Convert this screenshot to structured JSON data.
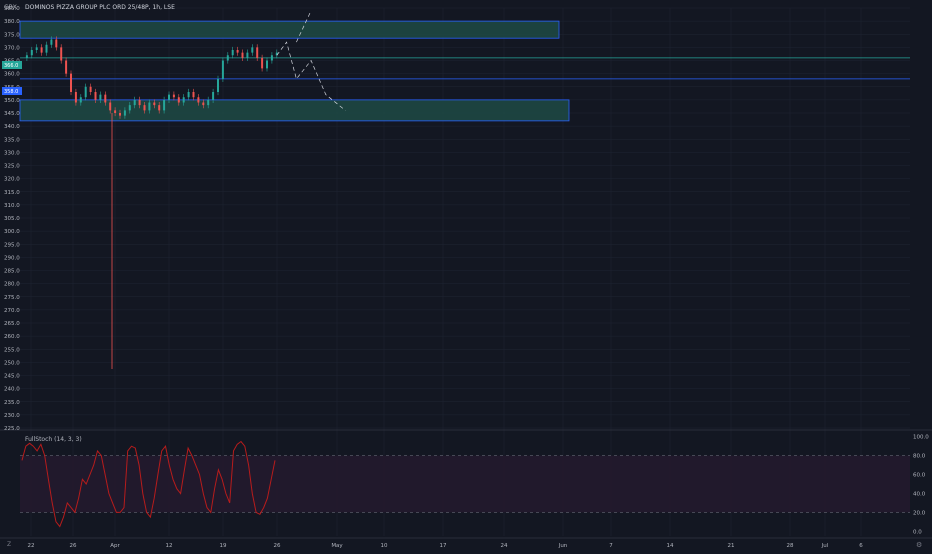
{
  "header": {
    "currency": "GBX",
    "symbol_title": "DOMINOS PIZZA GROUP PLC ORD 25/48P, 1h, LSE"
  },
  "price_tags": {
    "upper": "366.0",
    "lower": "358.0"
  },
  "indicator": {
    "label": "FullStoch (14, 3, 3)"
  },
  "corner": {
    "left_glyph": "Z",
    "right_glyph": "⚙"
  },
  "colors": {
    "background": "#131722",
    "grid": "#1f2433",
    "zone_fill": "#1f4a44",
    "zone_border": "#2962ff",
    "hline": "#2962ff",
    "bull": "#26a69a",
    "bear": "#ef5350",
    "axis_text": "#b2b5be",
    "stoch_line": "#b71c1c",
    "stoch_band": "#241a2e"
  },
  "chart_data": [
    {
      "type": "candlestick",
      "title": "DOMINOS PIZZA GROUP PLC ORD 25/48P, 1h, LSE",
      "y_unit": "GBX",
      "ylim": [
        225,
        385
      ],
      "y_ticks": [
        385.0,
        380.0,
        375.0,
        370.0,
        365.0,
        360.0,
        355.0,
        350.0,
        345.0,
        340.0,
        335.0,
        330.0,
        325.0,
        320.0,
        315.0,
        310.0,
        305.0,
        300.0,
        295.0,
        290.0,
        285.0,
        280.0,
        275.0,
        270.0,
        265.0,
        260.0,
        255.0,
        250.0,
        245.0,
        240.0,
        235.0,
        230.0,
        225.0
      ],
      "x_ticks": [
        "22",
        "26",
        "Apr",
        "12",
        "19",
        "26",
        "May",
        "10",
        "17",
        "24",
        "Jun",
        "7",
        "14",
        "21",
        "28",
        "Jul",
        "6"
      ],
      "zones": [
        {
          "from_date": "Mar 22",
          "to_date": "Jun 1",
          "low": 373.5,
          "high": 380.0
        },
        {
          "from_date": "Mar 22",
          "to_date": "Jun 2",
          "low": 342.0,
          "high": 350.0
        }
      ],
      "horizontal_lines": [
        366.0,
        358.0
      ],
      "price_path": [
        [
          0,
          366
        ],
        [
          2,
          367
        ],
        [
          4,
          369
        ],
        [
          6,
          370
        ],
        [
          8,
          368
        ],
        [
          10,
          371
        ],
        [
          12,
          373
        ],
        [
          14,
          370
        ],
        [
          16,
          365
        ],
        [
          18,
          360
        ],
        [
          20,
          353
        ],
        [
          22,
          349
        ],
        [
          24,
          351
        ],
        [
          26,
          355
        ],
        [
          28,
          353
        ],
        [
          30,
          350
        ],
        [
          32,
          352
        ],
        [
          34,
          349
        ],
        [
          36,
          346
        ],
        [
          38,
          345
        ],
        [
          40,
          344
        ],
        [
          42,
          346
        ],
        [
          44,
          348
        ],
        [
          46,
          350
        ],
        [
          48,
          348
        ],
        [
          50,
          346
        ],
        [
          52,
          349
        ],
        [
          54,
          348
        ],
        [
          56,
          346
        ],
        [
          58,
          350
        ],
        [
          60,
          352
        ],
        [
          62,
          351
        ],
        [
          64,
          349
        ],
        [
          66,
          351
        ],
        [
          68,
          353
        ],
        [
          70,
          351
        ],
        [
          72,
          349
        ],
        [
          74,
          348
        ],
        [
          76,
          350
        ],
        [
          78,
          353
        ],
        [
          80,
          358
        ],
        [
          82,
          365
        ],
        [
          84,
          367
        ],
        [
          86,
          369
        ],
        [
          88,
          368
        ],
        [
          90,
          366
        ],
        [
          92,
          368
        ],
        [
          94,
          370
        ],
        [
          96,
          366
        ],
        [
          98,
          362
        ],
        [
          100,
          365
        ],
        [
          102,
          367
        ],
        [
          104,
          368
        ]
      ],
      "outlier_wick_low": 247.5,
      "projection_path": [
        [
          104,
          367
        ],
        [
          108,
          372
        ],
        [
          112,
          358
        ],
        [
          118,
          365
        ],
        [
          124,
          352
        ],
        [
          132,
          346
        ]
      ],
      "projection_up_path": [
        [
          112,
          372
        ],
        [
          118,
          384
        ]
      ]
    },
    {
      "type": "line",
      "title": "FullStoch (14, 3, 3)",
      "ylim": [
        -5,
        105
      ],
      "y_ticks": [
        100.0,
        80.0,
        60.0,
        40.0,
        20.0,
        0.0
      ],
      "band": [
        20,
        80
      ],
      "series": [
        {
          "values": [
            75,
            90,
            93,
            90,
            85,
            92,
            80,
            55,
            30,
            10,
            5,
            15,
            30,
            25,
            20,
            35,
            55,
            50,
            60,
            70,
            85,
            80,
            60,
            40,
            30,
            20,
            20,
            25,
            85,
            90,
            88,
            70,
            40,
            20,
            15,
            35,
            60,
            85,
            90,
            70,
            55,
            45,
            40,
            65,
            88,
            80,
            70,
            60,
            40,
            25,
            20,
            45,
            65,
            55,
            40,
            30,
            85,
            92,
            95,
            90,
            70,
            40,
            20,
            18,
            25,
            35,
            55,
            75
          ]
        }
      ]
    }
  ]
}
